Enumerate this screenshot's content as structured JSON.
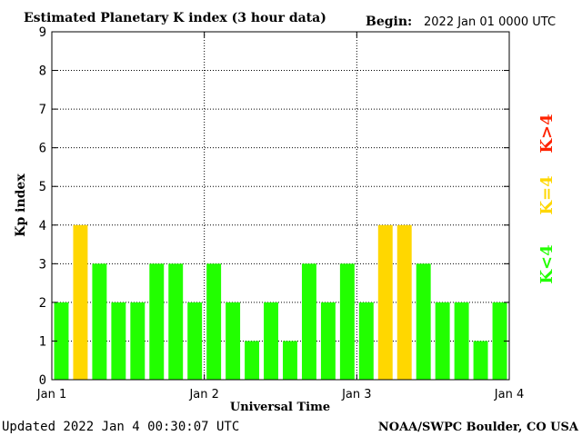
{
  "header": {
    "title": "Estimated Planetary K index (3 hour data)",
    "begin_label": "Begin:",
    "begin_value": "2022 Jan 01 0000 UTC"
  },
  "footer": {
    "updated": "Updated 2022 Jan  4 00:30:07 UTC",
    "source": "NOAA/SWPC Boulder, CO USA"
  },
  "legend": {
    "low": "K<4",
    "equal": "K=4",
    "high": "K>4"
  },
  "colors": {
    "low": "#22ff00",
    "equal": "#ffd700",
    "high": "#ff2200"
  },
  "chart_data": {
    "type": "bar",
    "title": "Estimated Planetary K index (3 hour data)",
    "xlabel": "Universal Time",
    "ylabel": "Kp index",
    "ylim": [
      0,
      9
    ],
    "yticks": [
      "0",
      "1",
      "2",
      "3",
      "4",
      "5",
      "6",
      "7",
      "8",
      "9"
    ],
    "xticks": [
      "Jan 1",
      "Jan 2",
      "Jan 3",
      "Jan 4"
    ],
    "grid": true,
    "values": [
      2,
      4,
      3,
      2,
      2,
      3,
      3,
      2,
      3,
      2,
      1,
      2,
      1,
      3,
      2,
      3,
      2,
      4,
      4,
      3,
      2,
      2,
      1,
      2
    ]
  }
}
